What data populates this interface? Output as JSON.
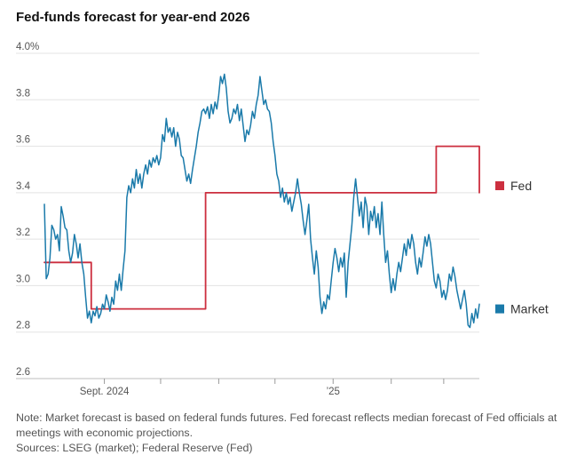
{
  "chart_data": {
    "type": "line",
    "title": "Fed-funds forecast for year-end 2026",
    "ylim": [
      2.6,
      4.0
    ],
    "y_ticks": [
      {
        "value": 4.0,
        "label": "4.0%"
      },
      {
        "value": 3.8,
        "label": "3.8"
      },
      {
        "value": 3.6,
        "label": "3.6"
      },
      {
        "value": 3.4,
        "label": "3.4"
      },
      {
        "value": 3.2,
        "label": "3.2"
      },
      {
        "value": 3.0,
        "label": "3.0"
      },
      {
        "value": 2.8,
        "label": "2.8"
      },
      {
        "value": 2.6,
        "label": "2.6"
      }
    ],
    "x_ticks": [
      {
        "date": "2024-09-01",
        "label": "Sept. 2024"
      },
      {
        "date": "2024-10-01",
        "label": ""
      },
      {
        "date": "2024-11-01",
        "label": ""
      },
      {
        "date": "2024-12-01",
        "label": ""
      },
      {
        "date": "2025-01-01",
        "label": "’25"
      },
      {
        "date": "2025-02-01",
        "label": ""
      },
      {
        "date": "2025-03-01",
        "label": ""
      },
      {
        "date": "2025-04-01",
        "label": ""
      },
      {
        "date": "2025-05-01",
        "label": ""
      },
      {
        "date": "2025-06-01",
        "label": ""
      },
      {
        "date": "2025-07-01",
        "label": ""
      },
      {
        "date": "2025-08-01",
        "label": ""
      },
      {
        "date": "2025-09-01",
        "label": ""
      }
    ],
    "grid": "horizontal",
    "legend": "right",
    "series": [
      {
        "name": "Market",
        "color": "#1a7aaa",
        "points": [
          [
            "2024-07-31",
            3.35
          ],
          [
            "2024-08-01",
            3.03
          ],
          [
            "2024-08-02",
            3.05
          ],
          [
            "2024-08-03",
            3.12
          ],
          [
            "2024-08-04",
            3.26
          ],
          [
            "2024-08-05",
            3.24
          ],
          [
            "2024-08-06",
            3.2
          ],
          [
            "2024-08-07",
            3.22
          ],
          [
            "2024-08-08",
            3.15
          ],
          [
            "2024-08-09",
            3.34
          ],
          [
            "2024-08-10",
            3.3
          ],
          [
            "2024-08-11",
            3.25
          ],
          [
            "2024-08-12",
            3.24
          ],
          [
            "2024-08-13",
            3.15
          ],
          [
            "2024-08-14",
            3.1
          ],
          [
            "2024-08-15",
            3.14
          ],
          [
            "2024-08-16",
            3.22
          ],
          [
            "2024-08-17",
            3.18
          ],
          [
            "2024-08-18",
            3.12
          ],
          [
            "2024-08-19",
            3.18
          ],
          [
            "2024-08-20",
            3.1
          ],
          [
            "2024-08-21",
            3.05
          ],
          [
            "2024-08-22",
            2.95
          ],
          [
            "2024-08-23",
            2.86
          ],
          [
            "2024-08-24",
            2.89
          ],
          [
            "2024-08-25",
            2.84
          ],
          [
            "2024-08-26",
            2.89
          ],
          [
            "2024-08-27",
            2.87
          ],
          [
            "2024-08-28",
            2.91
          ],
          [
            "2024-08-29",
            2.86
          ],
          [
            "2024-08-30",
            2.88
          ],
          [
            "2024-08-31",
            2.92
          ],
          [
            "2024-09-01",
            2.9
          ],
          [
            "2024-09-02",
            2.96
          ],
          [
            "2024-09-03",
            2.93
          ],
          [
            "2024-09-04",
            2.89
          ],
          [
            "2024-09-05",
            2.95
          ],
          [
            "2024-09-06",
            2.92
          ],
          [
            "2024-09-07",
            3.02
          ],
          [
            "2024-09-08",
            2.98
          ],
          [
            "2024-09-09",
            3.05
          ],
          [
            "2024-09-10",
            2.98
          ],
          [
            "2024-09-11",
            3.07
          ],
          [
            "2024-09-12",
            3.15
          ],
          [
            "2024-09-13",
            3.38
          ],
          [
            "2024-09-14",
            3.43
          ],
          [
            "2024-09-15",
            3.4
          ],
          [
            "2024-09-16",
            3.46
          ],
          [
            "2024-09-17",
            3.42
          ],
          [
            "2024-09-18",
            3.5
          ],
          [
            "2024-09-19",
            3.44
          ],
          [
            "2024-09-20",
            3.48
          ],
          [
            "2024-09-21",
            3.42
          ],
          [
            "2024-09-22",
            3.48
          ],
          [
            "2024-09-23",
            3.52
          ],
          [
            "2024-09-24",
            3.48
          ],
          [
            "2024-09-25",
            3.54
          ],
          [
            "2024-09-26",
            3.51
          ],
          [
            "2024-09-27",
            3.55
          ],
          [
            "2024-09-28",
            3.53
          ],
          [
            "2024-09-29",
            3.56
          ],
          [
            "2024-09-30",
            3.52
          ],
          [
            "2024-10-01",
            3.55
          ],
          [
            "2024-10-02",
            3.65
          ],
          [
            "2024-10-03",
            3.62
          ],
          [
            "2024-10-04",
            3.72
          ],
          [
            "2024-10-05",
            3.66
          ],
          [
            "2024-10-06",
            3.68
          ],
          [
            "2024-10-07",
            3.64
          ],
          [
            "2024-10-08",
            3.68
          ],
          [
            "2024-10-09",
            3.6
          ],
          [
            "2024-10-10",
            3.66
          ],
          [
            "2024-10-11",
            3.63
          ],
          [
            "2024-10-12",
            3.56
          ],
          [
            "2024-10-13",
            3.55
          ],
          [
            "2024-10-14",
            3.5
          ],
          [
            "2024-10-15",
            3.45
          ],
          [
            "2024-10-16",
            3.48
          ],
          [
            "2024-10-17",
            3.44
          ],
          [
            "2024-10-18",
            3.5
          ],
          [
            "2024-10-19",
            3.55
          ],
          [
            "2024-10-20",
            3.6
          ],
          [
            "2024-10-21",
            3.66
          ],
          [
            "2024-10-22",
            3.7
          ],
          [
            "2024-10-23",
            3.75
          ],
          [
            "2024-10-24",
            3.76
          ],
          [
            "2024-10-25",
            3.74
          ],
          [
            "2024-10-26",
            3.77
          ],
          [
            "2024-10-27",
            3.72
          ],
          [
            "2024-10-28",
            3.78
          ],
          [
            "2024-10-29",
            3.74
          ],
          [
            "2024-10-30",
            3.79
          ],
          [
            "2024-10-31",
            3.76
          ],
          [
            "2024-11-01",
            3.82
          ],
          [
            "2024-11-02",
            3.9
          ],
          [
            "2024-11-03",
            3.87
          ],
          [
            "2024-11-04",
            3.91
          ],
          [
            "2024-11-05",
            3.85
          ],
          [
            "2024-11-06",
            3.75
          ],
          [
            "2024-11-07",
            3.7
          ],
          [
            "2024-11-08",
            3.72
          ],
          [
            "2024-11-09",
            3.76
          ],
          [
            "2024-11-10",
            3.74
          ],
          [
            "2024-11-11",
            3.78
          ],
          [
            "2024-11-12",
            3.71
          ],
          [
            "2024-11-13",
            3.76
          ],
          [
            "2024-11-14",
            3.69
          ],
          [
            "2024-11-15",
            3.62
          ],
          [
            "2024-11-16",
            3.67
          ],
          [
            "2024-11-17",
            3.65
          ],
          [
            "2024-11-18",
            3.69
          ],
          [
            "2024-11-19",
            3.75
          ],
          [
            "2024-11-20",
            3.72
          ],
          [
            "2024-11-21",
            3.78
          ],
          [
            "2024-11-22",
            3.82
          ],
          [
            "2024-11-23",
            3.9
          ],
          [
            "2024-11-24",
            3.84
          ],
          [
            "2024-11-25",
            3.78
          ],
          [
            "2024-11-26",
            3.8
          ],
          [
            "2024-11-27",
            3.76
          ],
          [
            "2024-11-28",
            3.75
          ],
          [
            "2024-11-29",
            3.7
          ],
          [
            "2024-11-30",
            3.62
          ],
          [
            "2024-12-01",
            3.56
          ],
          [
            "2024-12-02",
            3.48
          ],
          [
            "2024-12-03",
            3.45
          ],
          [
            "2024-12-04",
            3.38
          ],
          [
            "2024-12-05",
            3.42
          ],
          [
            "2024-12-06",
            3.36
          ],
          [
            "2024-12-07",
            3.4
          ],
          [
            "2024-12-08",
            3.35
          ],
          [
            "2024-12-09",
            3.38
          ],
          [
            "2024-12-10",
            3.32
          ],
          [
            "2024-12-11",
            3.36
          ],
          [
            "2024-12-12",
            3.4
          ],
          [
            "2024-12-13",
            3.46
          ],
          [
            "2024-12-14",
            3.4
          ],
          [
            "2024-12-15",
            3.35
          ],
          [
            "2024-12-16",
            3.28
          ],
          [
            "2024-12-17",
            3.22
          ],
          [
            "2024-12-18",
            3.28
          ],
          [
            "2024-12-19",
            3.35
          ],
          [
            "2024-12-20",
            3.2
          ],
          [
            "2024-12-21",
            3.12
          ],
          [
            "2024-12-22",
            3.05
          ],
          [
            "2024-12-23",
            3.15
          ],
          [
            "2024-12-24",
            3.08
          ],
          [
            "2024-12-25",
            2.95
          ],
          [
            "2024-12-26",
            2.88
          ],
          [
            "2024-12-27",
            2.93
          ],
          [
            "2024-12-28",
            2.9
          ],
          [
            "2024-12-29",
            2.96
          ],
          [
            "2024-12-30",
            2.94
          ],
          [
            "2024-12-31",
            3.02
          ],
          [
            "2025-01-01",
            3.1
          ],
          [
            "2025-01-02",
            3.16
          ],
          [
            "2025-01-03",
            3.12
          ],
          [
            "2025-01-04",
            3.06
          ],
          [
            "2025-01-05",
            3.12
          ],
          [
            "2025-01-06",
            3.08
          ],
          [
            "2025-01-07",
            3.14
          ],
          [
            "2025-01-08",
            2.95
          ],
          [
            "2025-01-09",
            3.1
          ],
          [
            "2025-01-10",
            3.18
          ],
          [
            "2025-01-11",
            3.26
          ],
          [
            "2025-01-12",
            3.38
          ],
          [
            "2025-01-13",
            3.46
          ],
          [
            "2025-01-14",
            3.38
          ],
          [
            "2025-01-15",
            3.3
          ],
          [
            "2025-01-16",
            3.36
          ],
          [
            "2025-01-17",
            3.25
          ],
          [
            "2025-01-18",
            3.38
          ],
          [
            "2025-01-19",
            3.34
          ],
          [
            "2025-01-20",
            3.22
          ],
          [
            "2025-01-21",
            3.32
          ],
          [
            "2025-01-22",
            3.28
          ],
          [
            "2025-01-23",
            3.34
          ],
          [
            "2025-01-24",
            3.25
          ],
          [
            "2025-01-25",
            3.31
          ],
          [
            "2025-01-26",
            3.22
          ],
          [
            "2025-01-27",
            3.36
          ],
          [
            "2025-01-28",
            3.22
          ],
          [
            "2025-01-29",
            3.1
          ],
          [
            "2025-01-30",
            3.15
          ],
          [
            "2025-01-31",
            3.05
          ],
          [
            "2025-02-01",
            2.97
          ],
          [
            "2025-02-02",
            3.03
          ],
          [
            "2025-02-03",
            2.98
          ],
          [
            "2025-02-04",
            3.05
          ],
          [
            "2025-02-05",
            3.1
          ],
          [
            "2025-02-06",
            3.06
          ],
          [
            "2025-02-07",
            3.12
          ],
          [
            "2025-02-08",
            3.18
          ],
          [
            "2025-02-09",
            3.13
          ],
          [
            "2025-02-10",
            3.2
          ],
          [
            "2025-02-11",
            3.16
          ],
          [
            "2025-02-12",
            3.22
          ],
          [
            "2025-02-13",
            3.18
          ],
          [
            "2025-02-14",
            3.1
          ],
          [
            "2025-02-15",
            3.05
          ],
          [
            "2025-02-16",
            3.12
          ],
          [
            "2025-02-17",
            3.08
          ],
          [
            "2025-02-18",
            3.14
          ],
          [
            "2025-02-19",
            3.21
          ],
          [
            "2025-02-20",
            3.17
          ],
          [
            "2025-02-21",
            3.22
          ],
          [
            "2025-02-22",
            3.18
          ],
          [
            "2025-02-23",
            3.1
          ],
          [
            "2025-02-24",
            3.02
          ],
          [
            "2025-02-25",
            2.99
          ],
          [
            "2025-02-26",
            3.05
          ],
          [
            "2025-02-27",
            3.02
          ],
          [
            "2025-02-28",
            2.95
          ],
          [
            "2025-03-01",
            2.98
          ],
          [
            "2025-03-02",
            2.94
          ],
          [
            "2025-03-03",
            2.98
          ],
          [
            "2025-03-04",
            3.05
          ],
          [
            "2025-03-05",
            3.02
          ],
          [
            "2025-03-06",
            3.08
          ],
          [
            "2025-03-07",
            3.04
          ],
          [
            "2025-03-08",
            2.98
          ],
          [
            "2025-03-09",
            2.94
          ],
          [
            "2025-03-10",
            2.9
          ],
          [
            "2025-03-11",
            2.94
          ],
          [
            "2025-03-12",
            2.98
          ],
          [
            "2025-03-13",
            2.92
          ],
          [
            "2025-03-14",
            2.83
          ],
          [
            "2025-03-15",
            2.82
          ],
          [
            "2025-03-16",
            2.88
          ],
          [
            "2025-03-17",
            2.84
          ],
          [
            "2025-03-18",
            2.9
          ],
          [
            "2025-03-19",
            2.86
          ],
          [
            "2025-03-20",
            2.92
          ]
        ]
      },
      {
        "name": "Fed",
        "color": "#cc2f3f",
        "points": [
          [
            "2024-07-31",
            3.1
          ],
          [
            "2024-08-25",
            3.1
          ],
          [
            "2024-08-25",
            2.9
          ],
          [
            "2024-10-25",
            2.9
          ],
          [
            "2024-10-25",
            3.4
          ],
          [
            "2025-02-25",
            3.4
          ],
          [
            "2025-02-25",
            3.6
          ],
          [
            "2025-03-20",
            3.6
          ],
          [
            "2025-03-20",
            3.4
          ]
        ]
      }
    ]
  },
  "footer": {
    "note": "Note: Market forecast is based on federal funds futures. Fed forecast reflects median forecast of Fed officials at meetings with economic projections.",
    "sources": "Sources: LSEG (market); Federal Reserve (Fed)"
  }
}
